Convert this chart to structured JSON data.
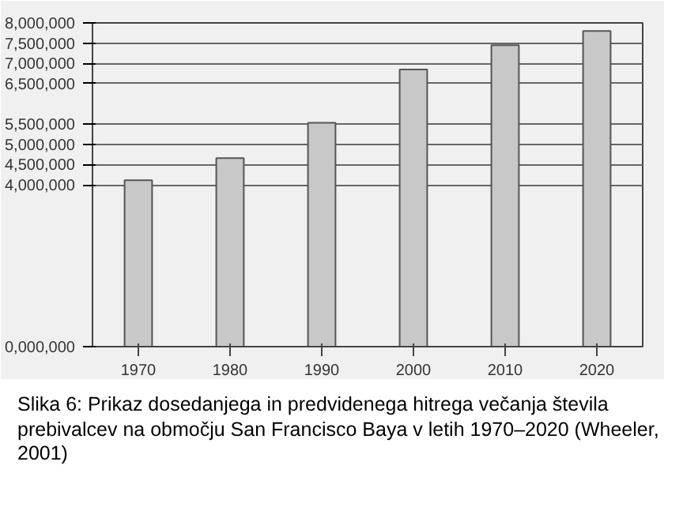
{
  "chart_data": {
    "type": "bar",
    "categories": [
      "1970",
      "1980",
      "1990",
      "2000",
      "2010",
      "2020"
    ],
    "values": [
      4110000,
      4660000,
      5530000,
      6850000,
      7450000,
      7800000
    ],
    "color": "#c8c8c8",
    "ylim": [
      0,
      8000000
    ],
    "yticks": [
      {
        "value": 0,
        "label": "0,000,000"
      },
      {
        "value": 4000000,
        "label": "4,000,000"
      },
      {
        "value": 4500000,
        "label": "4,500,000"
      },
      {
        "value": 5000000,
        "label": "5,000,000"
      },
      {
        "value": 5500000,
        "label": "5,500,000"
      },
      {
        "value": 6500000,
        "label": "6,500,000"
      },
      {
        "value": 7000000,
        "label": "7,000,000"
      },
      {
        "value": 7500000,
        "label": "7,500,000"
      },
      {
        "value": 8000000,
        "label": "8,000,000"
      }
    ],
    "grid": "y",
    "annotations": [
      "Slika 6: Prikaz dosedanjega in predvidenega hitrega večanja števila prebivalcev na območju San Francisco Baya v letih 1970–2020 (Wheeler, 2001)"
    ]
  }
}
